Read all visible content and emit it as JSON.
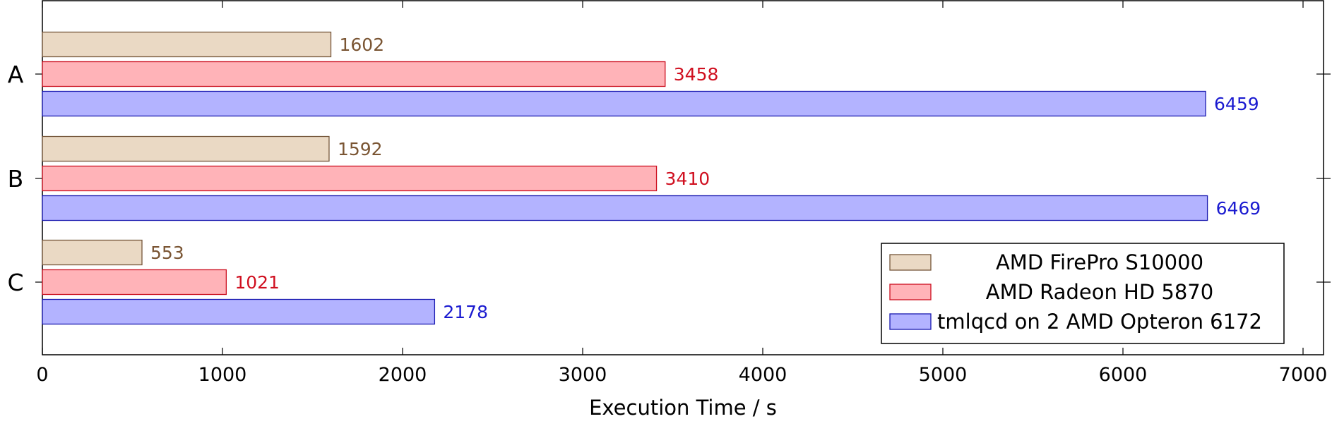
{
  "chart_data": {
    "type": "bar",
    "orientation": "horizontal",
    "categories": [
      "A",
      "B",
      "C"
    ],
    "series": [
      {
        "name": "AMD FirePro S10000",
        "values": [
          1602,
          1592,
          553
        ],
        "fill": "#ead9c4",
        "stroke": "#75563a",
        "label_color": "#7a5533"
      },
      {
        "name": "AMD Radeon HD 5870",
        "values": [
          3458,
          3410,
          1021
        ],
        "fill": "#ffb3b8",
        "stroke": "#cc1020",
        "label_color": "#d01020"
      },
      {
        "name": "tmlqcd on 2 AMD Opteron 6172",
        "values": [
          6459,
          6469,
          2178
        ],
        "fill": "#b3b3ff",
        "stroke": "#1a1ab0",
        "label_color": "#1a1ad0"
      }
    ],
    "xlabel": "Execution Time / s",
    "ylabel": "",
    "title": "",
    "xlim": [
      0,
      7100
    ],
    "xticks": [
      0,
      1000,
      2000,
      3000,
      4000,
      5000,
      6000,
      7000
    ],
    "grid": false,
    "legend_position": "bottom-right",
    "data_labels": true
  }
}
